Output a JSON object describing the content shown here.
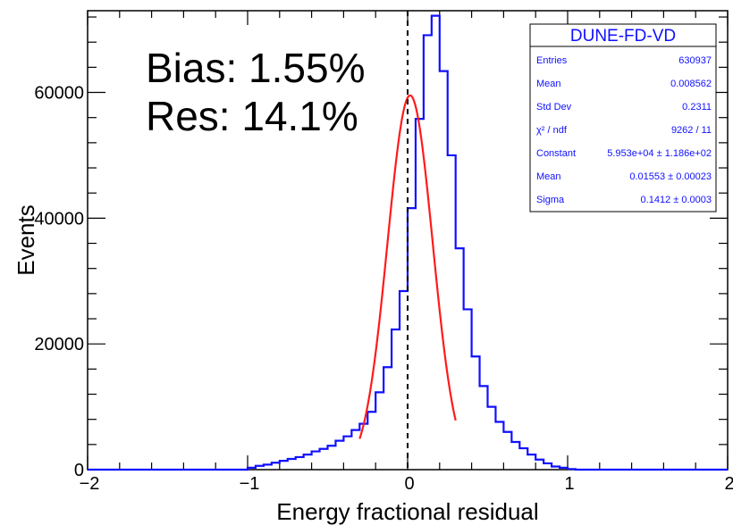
{
  "chart_data": {
    "type": "histogram",
    "xlabel": "Energy fractional residual",
    "ylabel": "Events",
    "xlim": [
      -2,
      2
    ],
    "ylim": [
      0,
      73000
    ],
    "x_ticks": [
      "−2",
      "−1",
      "0",
      "1",
      "2"
    ],
    "y_ticks": [
      {
        "value": 0,
        "label": "0"
      },
      {
        "value": 20000,
        "label": "20000"
      },
      {
        "value": 40000,
        "label": "40000"
      },
      {
        "value": 60000,
        "label": "60000"
      }
    ],
    "bin_width": 0.05,
    "histogram": {
      "color": "#1010ff",
      "bin_low_edges": [
        -1.4,
        -1.35,
        -1.3,
        -1.25,
        -1.2,
        -1.15,
        -1.1,
        -1.05,
        -1.0,
        -0.95,
        -0.9,
        -0.85,
        -0.8,
        -0.75,
        -0.7,
        -0.65,
        -0.6,
        -0.55,
        -0.5,
        -0.45,
        -0.4,
        -0.35,
        -0.3,
        -0.25,
        -0.2,
        -0.15,
        -0.1,
        -0.05,
        0.0,
        0.05,
        0.1,
        0.15,
        0.2,
        0.25,
        0.3,
        0.35,
        0.4,
        0.45,
        0.5,
        0.55,
        0.6,
        0.65,
        0.7,
        0.75,
        0.8,
        0.85,
        0.9,
        0.95,
        1.0,
        1.05,
        1.1,
        1.15,
        1.2,
        1.25,
        1.3,
        1.35
      ],
      "counts": [
        0,
        0,
        0,
        0,
        0,
        0,
        0,
        0,
        300,
        600,
        800,
        1100,
        1400,
        1700,
        2000,
        2400,
        2900,
        3300,
        3800,
        4600,
        5300,
        6300,
        7300,
        9200,
        12300,
        16300,
        22300,
        28400,
        41600,
        55800,
        69100,
        72200,
        63400,
        50000,
        35200,
        25500,
        18000,
        13300,
        10000,
        7600,
        6000,
        4400,
        3400,
        2400,
        1600,
        1000,
        500,
        300,
        100,
        0,
        0,
        0,
        0,
        0,
        0,
        0
      ]
    },
    "fit": {
      "type": "gaussian",
      "color": "#ff1a1a",
      "constant": 59530,
      "mean": 0.01553,
      "sigma": 0.1412,
      "x_range": [
        -0.3,
        0.3
      ]
    },
    "reference_line_x": 0,
    "annotations": [
      "Bias: 1.55%",
      "Res: 14.1%"
    ]
  },
  "stats_box": {
    "title": "DUNE-FD-VD",
    "rows": [
      {
        "label": "Entries",
        "value": "630937"
      },
      {
        "label": "Mean",
        "value": "0.008562"
      },
      {
        "label": "Std Dev",
        "value": "0.2311"
      },
      {
        "label": "χ² / ndf",
        "value": "9262 / 11"
      },
      {
        "label": "Constant",
        "value": "5.953e+04 ± 1.186e+02"
      },
      {
        "label": "Mean",
        "value": "0.01553 ± 0.00023"
      },
      {
        "label": "Sigma",
        "value": "0.1412 ± 0.0003"
      }
    ]
  }
}
